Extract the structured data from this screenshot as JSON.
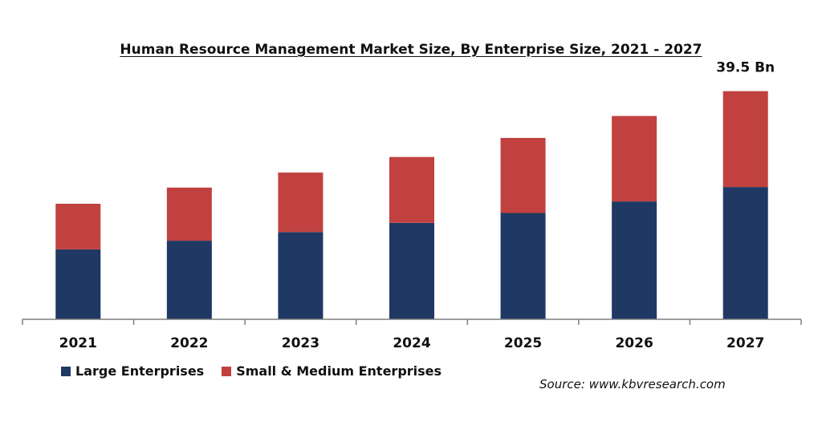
{
  "chart_data": {
    "type": "bar",
    "stacked": true,
    "title": "Human Resource Management Market Size, By Enterprise Size, 2021 - 2027",
    "categories": [
      "2021",
      "2022",
      "2023",
      "2024",
      "2025",
      "2026",
      "2027"
    ],
    "series": [
      {
        "name": "Large Enterprises",
        "color": "#1f3864",
        "values": [
          12.1,
          13.6,
          15.1,
          16.7,
          18.4,
          20.4,
          22.9
        ]
      },
      {
        "name": "Small & Medium Enterprises",
        "color": "#c0413f",
        "values": [
          7.9,
          9.2,
          10.3,
          11.4,
          13.0,
          14.8,
          16.6
        ]
      }
    ],
    "annotations": [
      {
        "category": "2027",
        "text": "39.5 Bn"
      }
    ],
    "ylim": [
      0,
      40
    ],
    "grid": false,
    "legend_position": "bottom-left",
    "source": "Source: www.kbvresearch.com"
  }
}
